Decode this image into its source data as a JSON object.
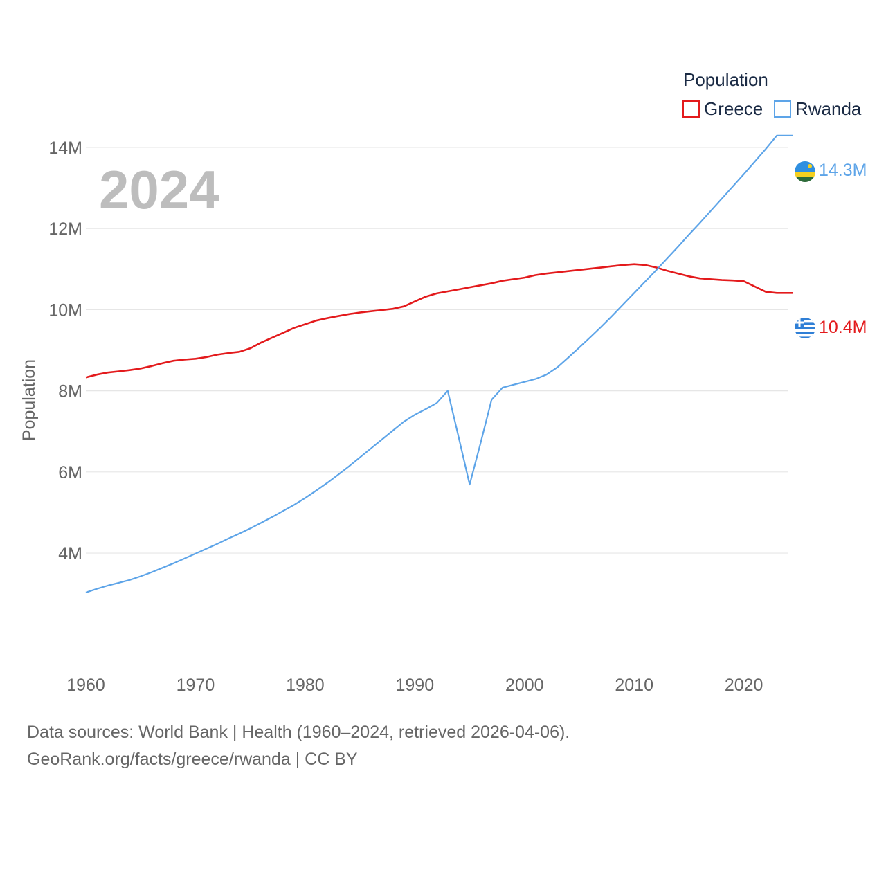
{
  "chart_data": {
    "type": "line",
    "ylabel": "Population",
    "year_label": "2024",
    "legend_title": "Population",
    "x": [
      1960,
      1961,
      1962,
      1963,
      1964,
      1965,
      1966,
      1967,
      1968,
      1969,
      1970,
      1971,
      1972,
      1973,
      1974,
      1975,
      1976,
      1977,
      1978,
      1979,
      1980,
      1981,
      1982,
      1983,
      1984,
      1985,
      1986,
      1987,
      1988,
      1989,
      1990,
      1991,
      1992,
      1993,
      1994,
      1995,
      1996,
      1997,
      1998,
      1999,
      2000,
      2001,
      2002,
      2003,
      2004,
      2005,
      2006,
      2007,
      2008,
      2009,
      2010,
      2011,
      2012,
      2013,
      2014,
      2015,
      2016,
      2017,
      2018,
      2019,
      2020,
      2021,
      2022,
      2023,
      2024
    ],
    "xlim": [
      1960,
      2024
    ],
    "ylim": [
      2500000,
      14800000
    ],
    "x_ticks": [
      1960,
      1970,
      1980,
      1990,
      2000,
      2010,
      2020
    ],
    "y_ticks": [
      {
        "value": 4000000,
        "label": "4M"
      },
      {
        "value": 6000000,
        "label": "6M"
      },
      {
        "value": 8000000,
        "label": "8M"
      },
      {
        "value": 10000000,
        "label": "10M"
      },
      {
        "value": 12000000,
        "label": "12M"
      },
      {
        "value": 14000000,
        "label": "14M"
      }
    ],
    "series": [
      {
        "name": "Greece",
        "color": "#e31a1c",
        "end_label": "10.4M",
        "flag": "greece-flag-icon",
        "values": [
          8330000,
          8400000,
          8450000,
          8480000,
          8510000,
          8550000,
          8610000,
          8680000,
          8740000,
          8770000,
          8790000,
          8830000,
          8890000,
          8930000,
          8960000,
          9050000,
          9190000,
          9310000,
          9430000,
          9550000,
          9640000,
          9730000,
          9790000,
          9840000,
          9890000,
          9930000,
          9960000,
          9990000,
          10020000,
          10080000,
          10200000,
          10320000,
          10400000,
          10450000,
          10500000,
          10550000,
          10600000,
          10650000,
          10710000,
          10750000,
          10790000,
          10850000,
          10890000,
          10920000,
          10950000,
          10980000,
          11010000,
          11040000,
          11070000,
          11100000,
          11120000,
          11100000,
          11040000,
          10960000,
          10890000,
          10820000,
          10770000,
          10750000,
          10730000,
          10720000,
          10700000,
          10570000,
          10440000,
          10410000,
          10410000
        ]
      },
      {
        "name": "Rwanda",
        "color": "#5da4e8",
        "end_label": "14.3M",
        "flag": "rwanda-flag-icon",
        "values": [
          3030000,
          3120000,
          3200000,
          3270000,
          3340000,
          3430000,
          3530000,
          3640000,
          3750000,
          3870000,
          3990000,
          4110000,
          4230000,
          4360000,
          4480000,
          4610000,
          4750000,
          4890000,
          5040000,
          5190000,
          5360000,
          5540000,
          5730000,
          5930000,
          6140000,
          6360000,
          6580000,
          6800000,
          7020000,
          7240000,
          7410000,
          7550000,
          7700000,
          8000000,
          6850000,
          5690000,
          6720000,
          7780000,
          8080000,
          8150000,
          8220000,
          8290000,
          8400000,
          8580000,
          8820000,
          9070000,
          9320000,
          9580000,
          9850000,
          10130000,
          10410000,
          10690000,
          10970000,
          11260000,
          11550000,
          11850000,
          12140000,
          12440000,
          12740000,
          13040000,
          13340000,
          13650000,
          13960000,
          14290000,
          14290000
        ]
      }
    ]
  },
  "footer": {
    "line1": "Data sources: World Bank | Health (1960–2024, retrieved 2026-04-06).",
    "line2": "GeoRank.org/facts/greece/rwanda | CC BY"
  }
}
